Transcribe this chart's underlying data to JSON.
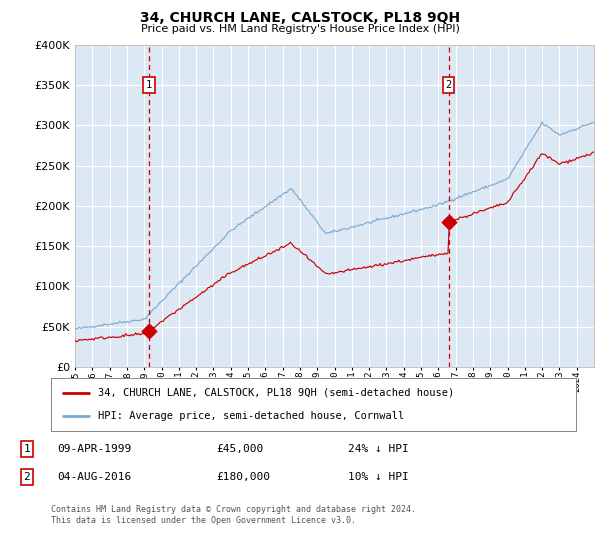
{
  "title": "34, CHURCH LANE, CALSTOCK, PL18 9QH",
  "subtitle": "Price paid vs. HM Land Registry's House Price Index (HPI)",
  "legend_line1": "34, CHURCH LANE, CALSTOCK, PL18 9QH (semi-detached house)",
  "legend_line2": "HPI: Average price, semi-detached house, Cornwall",
  "annotation1_date": "09-APR-1999",
  "annotation1_price": "£45,000",
  "annotation1_hpi": "24% ↓ HPI",
  "annotation1_year": 1999.27,
  "annotation1_value": 45000,
  "annotation2_date": "04-AUG-2016",
  "annotation2_price": "£180,000",
  "annotation2_hpi": "10% ↓ HPI",
  "annotation2_year": 2016.59,
  "annotation2_value": 180000,
  "footer": "Contains HM Land Registry data © Crown copyright and database right 2024.\nThis data is licensed under the Open Government Licence v3.0.",
  "ylim": [
    0,
    400000
  ],
  "start_year": 1995.0,
  "end_year": 2025.0,
  "plot_bg": "#dce9f5",
  "red_line_color": "#cc0000",
  "blue_line_color": "#7aabcf",
  "grid_color": "#ffffff",
  "dashed_line_color": "#cc0000",
  "fig_width": 6.0,
  "fig_height": 5.6,
  "dpi": 100
}
